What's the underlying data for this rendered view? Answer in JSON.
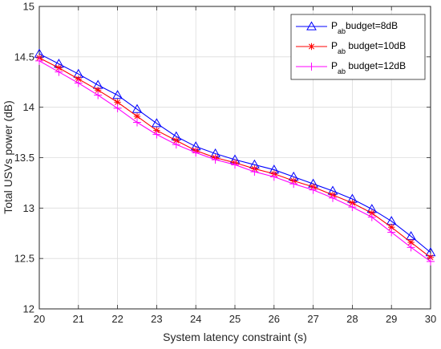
{
  "chart_data": {
    "type": "line",
    "title": "",
    "xlabel": "System latency constraint (s)",
    "ylabel": "Total USVs power (dB)",
    "xlim": [
      20,
      30
    ],
    "ylim": [
      12,
      15
    ],
    "x_ticks": [
      "20",
      "21",
      "22",
      "23",
      "24",
      "25",
      "26",
      "27",
      "28",
      "29",
      "30"
    ],
    "y_ticks": [
      "12",
      "12.5",
      "13",
      "13.5",
      "14",
      "14.5",
      "15"
    ],
    "grid": true,
    "legend_placement": "top-right",
    "x": [
      20,
      20.5,
      21,
      21.5,
      22,
      22.5,
      23,
      23.5,
      24,
      24.5,
      25,
      25.5,
      26,
      26.5,
      27,
      27.5,
      28,
      28.5,
      29,
      29.5,
      30
    ],
    "series": [
      {
        "name_main": "P",
        "name_sub": "ab",
        "name_rest": "budget=8dB",
        "color": "#0000ff",
        "marker": "triangle",
        "values": [
          14.53,
          14.43,
          14.33,
          14.22,
          14.12,
          13.98,
          13.84,
          13.71,
          13.61,
          13.54,
          13.48,
          13.43,
          13.38,
          13.31,
          13.24,
          13.17,
          13.09,
          12.99,
          12.87,
          12.72,
          12.56
        ]
      },
      {
        "name_main": "P",
        "name_sub": "ab",
        "name_rest": " budget=10dB",
        "color": "#ff0000",
        "marker": "star",
        "values": [
          14.49,
          14.39,
          14.28,
          14.17,
          14.05,
          13.91,
          13.77,
          13.67,
          13.57,
          13.5,
          13.45,
          13.39,
          13.34,
          13.27,
          13.21,
          13.13,
          13.05,
          12.95,
          12.81,
          12.66,
          12.51
        ]
      },
      {
        "name_main": "P",
        "name_sub": "ab",
        "name_rest": " budget=12dB",
        "color": "#ff00ff",
        "marker": "plus",
        "values": [
          14.46,
          14.35,
          14.24,
          14.12,
          13.99,
          13.85,
          13.73,
          13.63,
          13.55,
          13.48,
          13.43,
          13.36,
          13.31,
          13.24,
          13.18,
          13.1,
          13.01,
          12.91,
          12.76,
          12.61,
          12.47
        ]
      }
    ]
  }
}
